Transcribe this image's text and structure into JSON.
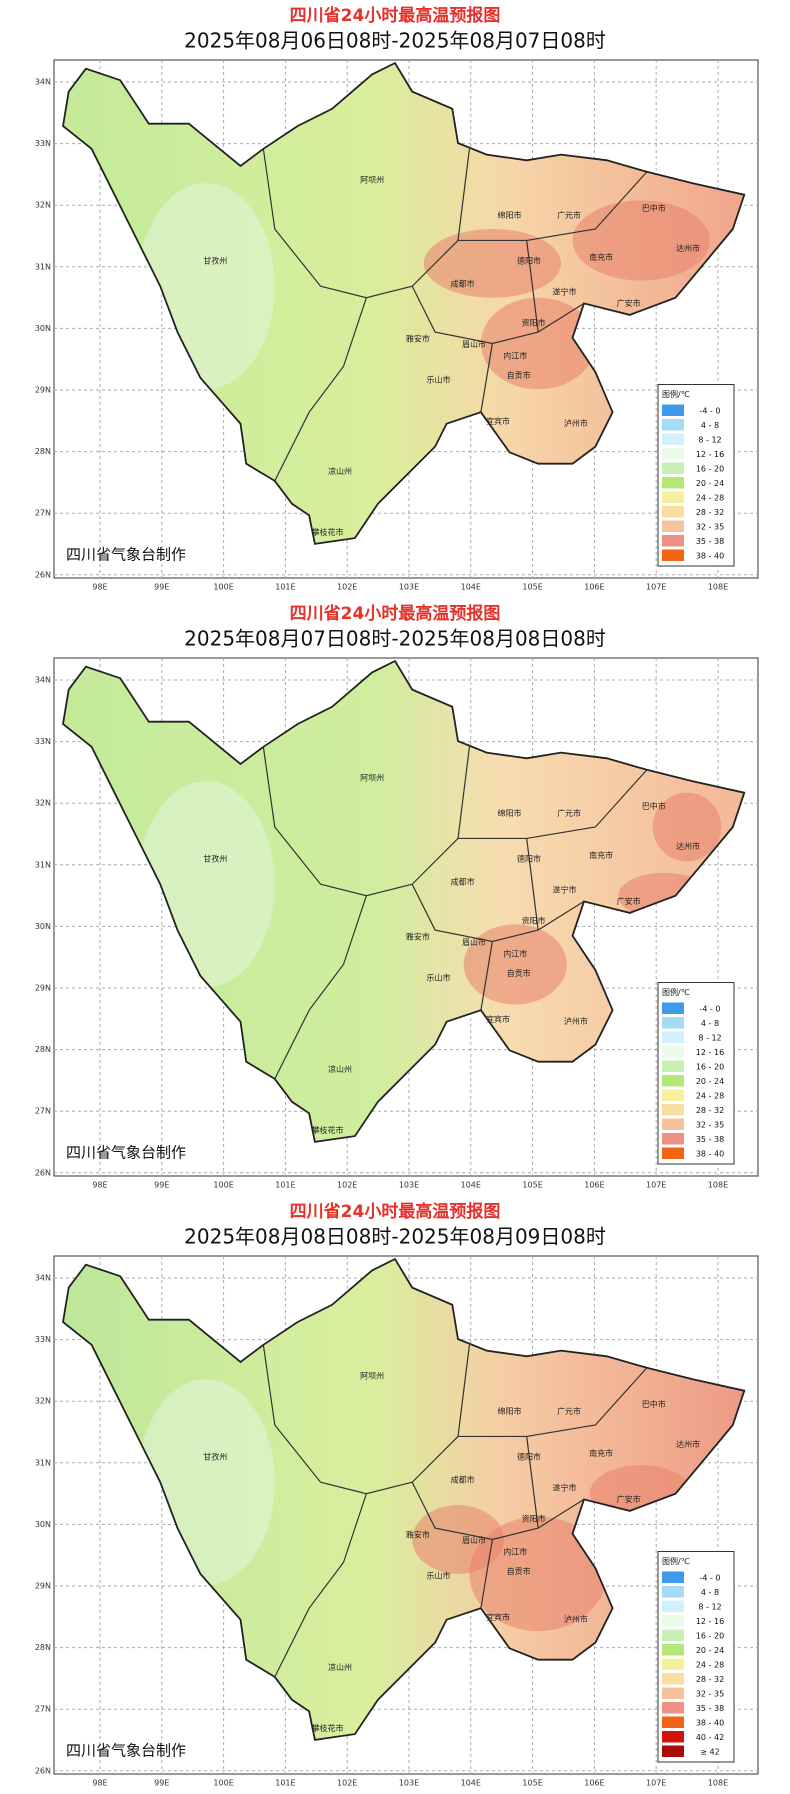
{
  "maps": [
    {
      "title": "四川省24小时最高温预报图",
      "subtitle": "2025年08月06日08时-2025年08月07日08时",
      "lat_labels": [
        "34N",
        "33N",
        "32N",
        "31N",
        "30N",
        "29N",
        "28N",
        "27N",
        "26N"
      ],
      "lon_labels": [
        "98E",
        "99E",
        "100E",
        "101E",
        "102E",
        "103E",
        "104E",
        "105E",
        "106E",
        "107E",
        "108E"
      ],
      "cities": [
        "阿坝州",
        "甘孜州",
        "广元市",
        "巴中市",
        "绵阳市",
        "达州市",
        "南充市",
        "德阳市",
        "成都市",
        "遂宁市",
        "广安市",
        "雅安市",
        "资阳市",
        "眉山市",
        "内江市",
        "乐山市",
        "自贡市",
        "宜宾市",
        "泸州市",
        "凉山州",
        "攀枝花市"
      ],
      "legend": {
        "title": "图例/℃",
        "items": [
          "-4 - 0",
          "4 - 8",
          "8 - 12",
          "12 - 16",
          "16 - 20",
          "20 - 24",
          "24 - 28",
          "28 - 32",
          "32 - 35",
          "35 - 38",
          "38 - 40"
        ],
        "colors": [
          "#3d9be9",
          "#a5dcf5",
          "#d2f0fb",
          "#eafbe9",
          "#c8f0b4",
          "#b4e678",
          "#f5f09b",
          "#f8dfa0",
          "#f5c39b",
          "#ee9182",
          "#f06414"
        ]
      },
      "credit": "四川省气象台制作"
    },
    {
      "title": "四川省24小时最高温预报图",
      "subtitle": "2025年08月07日08时-2025年08月08日08时",
      "lat_labels": [
        "34N",
        "33N",
        "32N",
        "31N",
        "30N",
        "29N",
        "28N",
        "27N",
        "26N"
      ],
      "lon_labels": [
        "98E",
        "99E",
        "100E",
        "101E",
        "102E",
        "103E",
        "104E",
        "105E",
        "106E",
        "107E",
        "108E"
      ],
      "cities": [
        "阿坝州",
        "甘孜州",
        "广元市",
        "巴中市",
        "绵阳市",
        "达州市",
        "南充市",
        "德阳市",
        "成都市",
        "遂宁市",
        "广安市",
        "雅安市",
        "资阳市",
        "眉山市",
        "内江市",
        "乐山市",
        "自贡市",
        "宜宾市",
        "泸州市",
        "凉山州",
        "攀枝花市"
      ],
      "legend": {
        "title": "图例/℃",
        "items": [
          "-4 - 0",
          "4 - 8",
          "8 - 12",
          "12 - 16",
          "16 - 20",
          "20 - 24",
          "24 - 28",
          "28 - 32",
          "32 - 35",
          "35 - 38",
          "38 - 40"
        ],
        "colors": [
          "#3d9be9",
          "#a5dcf5",
          "#d2f0fb",
          "#eafbe9",
          "#c8f0b4",
          "#b4e678",
          "#f5f09b",
          "#f8dfa0",
          "#f5c39b",
          "#ee9182",
          "#f06414"
        ]
      },
      "credit": "四川省气象台制作"
    },
    {
      "title": "四川省24小时最高温预报图",
      "subtitle": "2025年08月08日08时-2025年08月09日08时",
      "lat_labels": [
        "34N",
        "33N",
        "32N",
        "31N",
        "30N",
        "29N",
        "28N",
        "27N",
        "26N"
      ],
      "lon_labels": [
        "98E",
        "99E",
        "100E",
        "101E",
        "102E",
        "103E",
        "104E",
        "105E",
        "106E",
        "107E",
        "108E"
      ],
      "cities": [
        "阿坝州",
        "甘孜州",
        "广元市",
        "巴中市",
        "绵阳市",
        "达州市",
        "南充市",
        "德阳市",
        "成都市",
        "遂宁市",
        "广安市",
        "雅安市",
        "资阳市",
        "眉山市",
        "内江市",
        "乐山市",
        "自贡市",
        "宜宾市",
        "泸州市",
        "凉山州",
        "攀枝花市"
      ],
      "legend": {
        "title": "图例/℃",
        "items": [
          "-4 - 0",
          "4 - 8",
          "8 - 12",
          "12 - 16",
          "16 - 20",
          "20 - 24",
          "24 - 28",
          "28 - 32",
          "32 - 35",
          "35 - 38",
          "38 - 40",
          "40 - 42",
          "≥ 42"
        ],
        "colors": [
          "#3d9be9",
          "#a5dcf5",
          "#d2f0fb",
          "#eafbe9",
          "#c8f0b4",
          "#b4e678",
          "#f5f09b",
          "#f8dfa0",
          "#f5c39b",
          "#ee9182",
          "#f06414",
          "#d2140a",
          "#aa0a0a"
        ]
      },
      "credit": "四川省气象台制作"
    }
  ]
}
